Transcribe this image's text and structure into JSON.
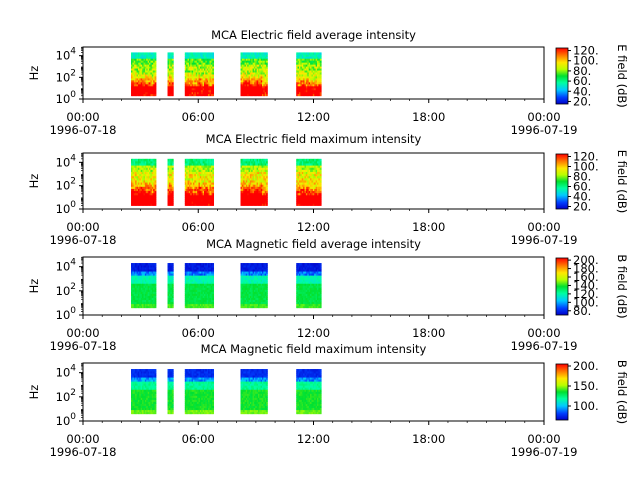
{
  "chart_data": [
    {
      "type": "heatmap",
      "title": "MCA  Electric field average intensity",
      "ylabel": "Hz",
      "colorbar_label": "E field (dB)",
      "colorbar_ticks": [
        "20.",
        "40.",
        "60.",
        "80.",
        "100.",
        "120."
      ],
      "colorbar_range": [
        15,
        125
      ],
      "colormap": "rainbow",
      "background_color": "#ffffff",
      "y_ticks": [
        {
          "exp": "0"
        },
        {
          "exp": "2"
        },
        {
          "exp": "4"
        }
      ],
      "y_log_range": [
        0,
        4.8
      ],
      "x_ticks": [
        {
          "time": "00:00",
          "date": "1996-07-18"
        },
        {
          "time": "06:00",
          "date": ""
        },
        {
          "time": "12:00",
          "date": ""
        },
        {
          "time": "18:00",
          "date": ""
        },
        {
          "time": "00:00",
          "date": "1996-07-19"
        }
      ],
      "x_range_hours": [
        0,
        24
      ],
      "data_bursts_hours": [
        [
          2.5,
          3.8
        ],
        [
          4.4,
          4.7
        ],
        [
          5.3,
          6.8
        ],
        [
          8.2,
          9.6
        ],
        [
          11.1,
          12.4
        ]
      ],
      "data_freq_range_log": [
        0.3,
        4.3
      ],
      "profile": "electric-avg"
    },
    {
      "type": "heatmap",
      "title": "MCA  Electric field maximum intensity",
      "ylabel": "Hz",
      "colorbar_label": "E field (dB)",
      "colorbar_ticks": [
        "20.",
        "40.",
        "60.",
        "80.",
        "100.",
        "120."
      ],
      "colorbar_range": [
        15,
        125
      ],
      "colormap": "rainbow",
      "background_color": "#ffffff",
      "y_ticks": [
        {
          "exp": "0"
        },
        {
          "exp": "2"
        },
        {
          "exp": "4"
        }
      ],
      "y_log_range": [
        0,
        4.8
      ],
      "x_ticks": [
        {
          "time": "00:00",
          "date": "1996-07-18"
        },
        {
          "time": "06:00",
          "date": ""
        },
        {
          "time": "12:00",
          "date": ""
        },
        {
          "time": "18:00",
          "date": ""
        },
        {
          "time": "00:00",
          "date": "1996-07-19"
        }
      ],
      "x_range_hours": [
        0,
        24
      ],
      "data_bursts_hours": [
        [
          2.5,
          3.8
        ],
        [
          4.4,
          4.7
        ],
        [
          5.3,
          6.8
        ],
        [
          8.2,
          9.6
        ],
        [
          11.1,
          12.4
        ]
      ],
      "data_freq_range_log": [
        0.3,
        4.3
      ],
      "profile": "electric-max"
    },
    {
      "type": "heatmap",
      "title": "MCA  Magnetic field average intensity",
      "ylabel": "Hz",
      "colorbar_label": "B field (dB)",
      "colorbar_ticks": [
        "80.",
        "100.",
        "120.",
        "140.",
        "160.",
        "180.",
        "200."
      ],
      "colorbar_range": [
        70,
        205
      ],
      "colormap": "rainbow",
      "background_color": "#ffffff",
      "y_ticks": [
        {
          "exp": "0"
        },
        {
          "exp": "2"
        },
        {
          "exp": "4"
        }
      ],
      "y_log_range": [
        0,
        4.8
      ],
      "x_ticks": [
        {
          "time": "00:00",
          "date": "1996-07-18"
        },
        {
          "time": "06:00",
          "date": ""
        },
        {
          "time": "12:00",
          "date": ""
        },
        {
          "time": "18:00",
          "date": ""
        },
        {
          "time": "00:00",
          "date": "1996-07-19"
        }
      ],
      "x_range_hours": [
        0,
        24
      ],
      "data_bursts_hours": [
        [
          2.5,
          3.8
        ],
        [
          4.4,
          4.7
        ],
        [
          5.3,
          6.8
        ],
        [
          8.2,
          9.6
        ],
        [
          11.1,
          12.4
        ]
      ],
      "data_freq_range_log": [
        0.6,
        4.3
      ],
      "profile": "magnetic-avg"
    },
    {
      "type": "heatmap",
      "title": "MCA  Magnetic field maximum intensity",
      "ylabel": "Hz",
      "colorbar_label": "B field (dB)",
      "colorbar_ticks": [
        "100.",
        "150.",
        "200."
      ],
      "colorbar_range": [
        65,
        205
      ],
      "colormap": "rainbow",
      "background_color": "#ffffff",
      "y_ticks": [
        {
          "exp": "0"
        },
        {
          "exp": "2"
        },
        {
          "exp": "4"
        }
      ],
      "y_log_range": [
        0,
        4.8
      ],
      "x_ticks": [
        {
          "time": "00:00",
          "date": "1996-07-18"
        },
        {
          "time": "06:00",
          "date": ""
        },
        {
          "time": "12:00",
          "date": ""
        },
        {
          "time": "18:00",
          "date": ""
        },
        {
          "time": "00:00",
          "date": "1996-07-19"
        }
      ],
      "x_range_hours": [
        0,
        24
      ],
      "data_bursts_hours": [
        [
          2.5,
          3.8
        ],
        [
          4.4,
          4.7
        ],
        [
          5.3,
          6.8
        ],
        [
          8.2,
          9.6
        ],
        [
          11.1,
          12.4
        ]
      ],
      "data_freq_range_log": [
        0.6,
        4.3
      ],
      "profile": "magnetic-max"
    }
  ]
}
